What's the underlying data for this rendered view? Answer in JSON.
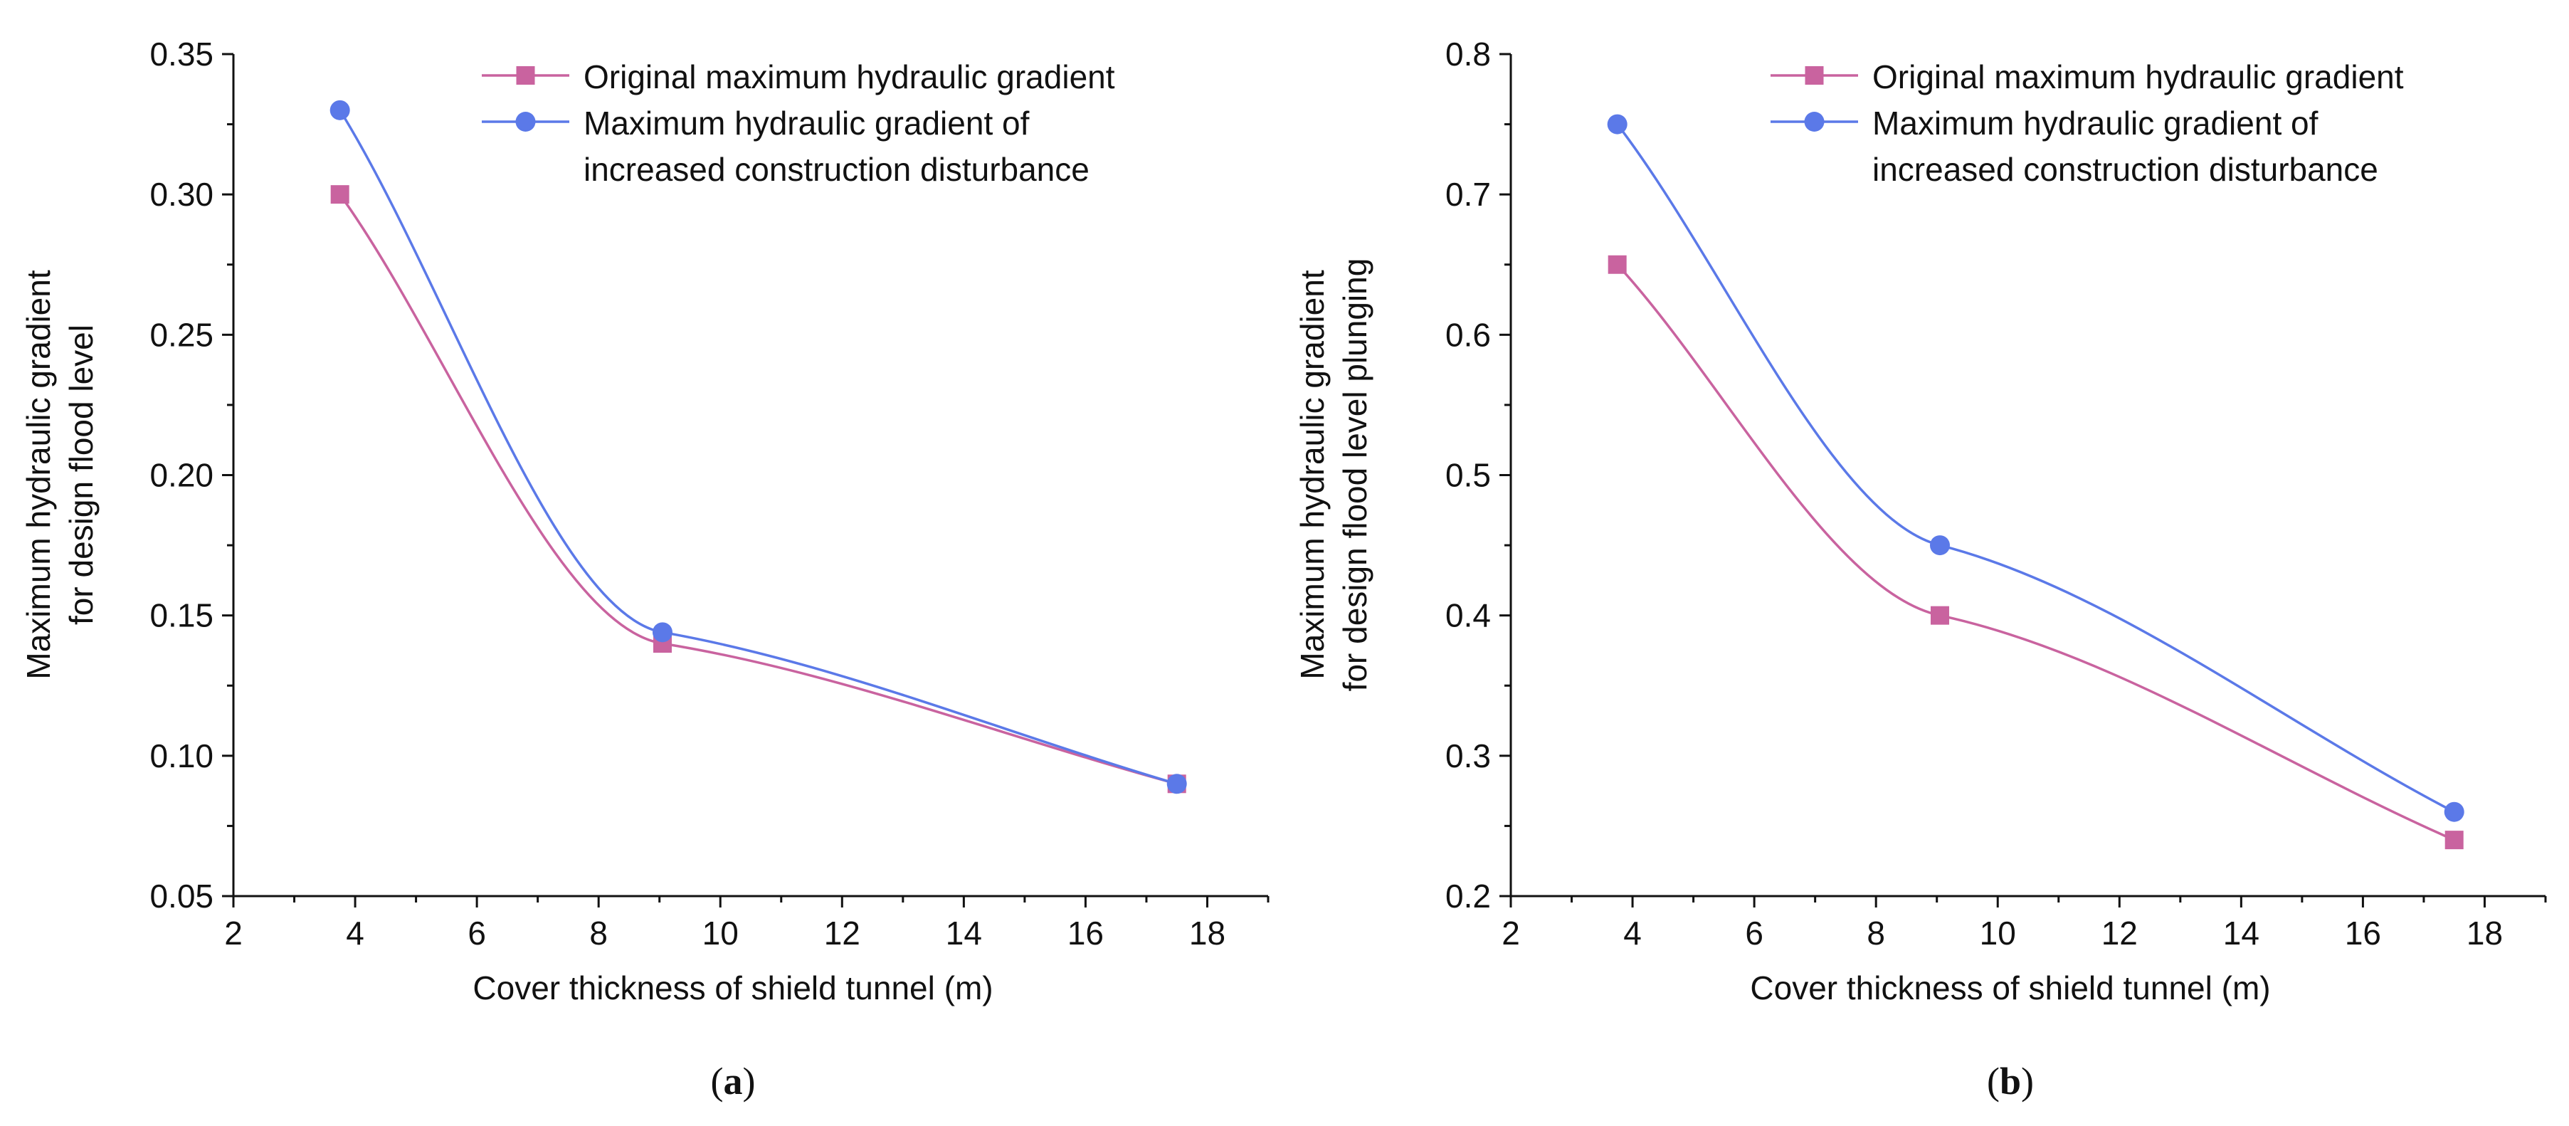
{
  "colors": {
    "original": "#c9639f",
    "increased": "#5b79e8",
    "axis": "#111111"
  },
  "chart_data": [
    {
      "panel": "a",
      "panel_label": "a",
      "type": "line",
      "title": "",
      "xlabel": "Cover thickness of shield tunnel (m)",
      "ylabel_lines": [
        "Maximum hydraulic gradient",
        "for design flood level"
      ],
      "xlim": [
        2,
        19
      ],
      "ylim": [
        0.05,
        0.35
      ],
      "x_ticks": [
        2,
        4,
        6,
        8,
        10,
        12,
        14,
        16,
        18
      ],
      "x_tick_labels": [
        "2",
        "4",
        "6",
        "8",
        "10",
        "12",
        "14",
        "16",
        "18"
      ],
      "y_ticks": [
        0.05,
        0.1,
        0.15,
        0.2,
        0.25,
        0.3,
        0.35
      ],
      "y_tick_labels": [
        "0.05",
        "0.10",
        "0.15",
        "0.20",
        "0.25",
        "0.30",
        "0.35"
      ],
      "legend_position": "top-right",
      "series": [
        {
          "name": "Original maximum hydraulic gradient",
          "legend_lines": [
            "Original maximum hydraulic gradient"
          ],
          "marker": "square",
          "color": "#c9639f",
          "x": [
            3.75,
            9.05,
            17.5
          ],
          "y": [
            0.3,
            0.14,
            0.09
          ]
        },
        {
          "name": "Maximum hydraulic gradient of increased construction disturbance",
          "legend_lines": [
            "Maximum hydraulic gradient of",
            "increased construction disturbance"
          ],
          "marker": "circle",
          "color": "#5b79e8",
          "x": [
            3.75,
            9.05,
            17.5
          ],
          "y": [
            0.33,
            0.144,
            0.09
          ]
        }
      ]
    },
    {
      "panel": "b",
      "panel_label": "b",
      "type": "line",
      "title": "",
      "xlabel": "Cover thickness of shield tunnel (m)",
      "ylabel_lines": [
        "Maximum hydraulic gradient",
        "for design flood level plunging"
      ],
      "xlim": [
        2,
        19
      ],
      "ylim": [
        0.2,
        0.8
      ],
      "x_ticks": [
        2,
        4,
        6,
        8,
        10,
        12,
        14,
        16,
        18
      ],
      "x_tick_labels": [
        "2",
        "4",
        "6",
        "8",
        "10",
        "12",
        "14",
        "16",
        "18"
      ],
      "y_ticks": [
        0.2,
        0.3,
        0.4,
        0.5,
        0.6,
        0.7,
        0.8
      ],
      "y_tick_labels": [
        "0.2",
        "0.3",
        "0.4",
        "0.5",
        "0.6",
        "0.7",
        "0.8"
      ],
      "legend_position": "top-right",
      "series": [
        {
          "name": "Original maximum hydraulic gradient",
          "legend_lines": [
            "Original maximum hydraulic gradient"
          ],
          "marker": "square",
          "color": "#c9639f",
          "x": [
            3.75,
            9.05,
            17.5
          ],
          "y": [
            0.65,
            0.4,
            0.24
          ]
        },
        {
          "name": "Maximum hydraulic gradient of increased construction disturbance",
          "legend_lines": [
            "Maximum hydraulic gradient of",
            "increased construction disturbance"
          ],
          "marker": "circle",
          "color": "#5b79e8",
          "x": [
            3.75,
            9.05,
            17.5
          ],
          "y": [
            0.75,
            0.45,
            0.26
          ]
        }
      ]
    }
  ]
}
